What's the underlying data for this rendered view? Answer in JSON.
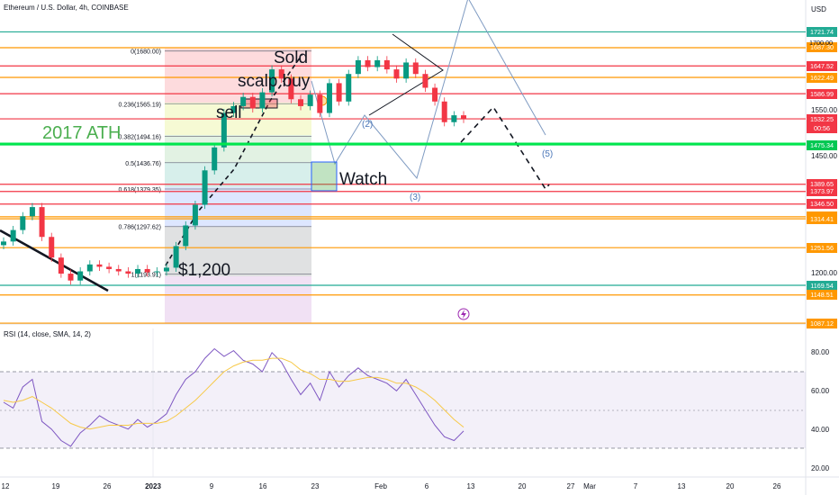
{
  "header": {
    "symbol_title": "Ethereum / U.S. Dollar, 4h, COINBASE",
    "currency": "USD",
    "rsi_title": "RSI (14, close, SMA, 14, 2)"
  },
  "chart_data": [
    {
      "type": "line",
      "title": "Ethereum / U.S. Dollar, 4h, COINBASE",
      "ylabel": "USD",
      "ylim": [
        1080,
        1760
      ],
      "x_ticks": [
        "12",
        "19",
        "26",
        "2023",
        "9",
        "16",
        "23",
        "Feb",
        "6",
        "13",
        "20",
        "27",
        "Mar",
        "7",
        "13",
        "20",
        "26"
      ],
      "y_ticks": [
        1200,
        1450,
        1550,
        1700
      ],
      "price_labels": [
        {
          "value": "1721.74",
          "color": "#22ab94"
        },
        {
          "value": "1687.30",
          "color": "#ff9800"
        },
        {
          "value": "1647.52",
          "color": "#f23645"
        },
        {
          "value": "1622.49",
          "color": "#ff9800"
        },
        {
          "value": "1586.99",
          "color": "#f23645"
        },
        {
          "value": "1532.25",
          "color": "#f23645"
        },
        {
          "value": "1475.34",
          "color": "#00c853"
        },
        {
          "value": "1389.65",
          "color": "#f23645"
        },
        {
          "value": "1373.97",
          "color": "#f23645"
        },
        {
          "value": "1346.50",
          "color": "#f23645"
        },
        {
          "value": "1318.82",
          "color": "#ff9800"
        },
        {
          "value": "1314.41",
          "color": "#ff9800"
        },
        {
          "value": "1251.56",
          "color": "#ff9800"
        },
        {
          "value": "1169.54",
          "color": "#22ab94"
        },
        {
          "value": "1148.51",
          "color": "#ff9800"
        },
        {
          "value": "1087.12",
          "color": "#ff9800"
        }
      ],
      "countdown": "00:56",
      "fib_levels": [
        {
          "label": "0(1680.00)",
          "price": 1680.0
        },
        {
          "label": "0.236(1565.19)",
          "price": 1565.19
        },
        {
          "label": "0.382(1494.16)",
          "price": 1494.16
        },
        {
          "label": "0.5(1436.76)",
          "price": 1436.76
        },
        {
          "label": "0.618(1379.35)",
          "price": 1379.35
        },
        {
          "label": "0.786(1297.62)",
          "price": 1297.62
        },
        {
          "label": "1(1193.91)",
          "price": 1193.91
        }
      ],
      "annotations": [
        "2017 ATH",
        "Sold",
        "scalp buy",
        "sell",
        "$1,200",
        "Watch",
        "(2)",
        "(3)",
        "(5)"
      ],
      "series": [
        {
          "values_approx_4h_closes": [
            1265,
            1290,
            1320,
            1340,
            1275,
            1230,
            1195,
            1180,
            1200,
            1215,
            1210,
            1205,
            1200,
            1195,
            1205,
            1198,
            1200,
            1208,
            1255,
            1300,
            1345,
            1420,
            1470,
            1545,
            1560,
            1580,
            1555,
            1590,
            1640,
            1620,
            1575,
            1560,
            1585,
            1545,
            1610,
            1570,
            1630,
            1660,
            1645,
            1660,
            1640,
            1620,
            1655,
            1630,
            1600,
            1570,
            1525,
            1540,
            1532
          ]
        }
      ]
    },
    {
      "type": "line",
      "title": "RSI (14, close, SMA, 14, 2)",
      "ylim": [
        20,
        95
      ],
      "y_ticks": [
        "80.00",
        "60.00",
        "40.00",
        "20.00"
      ],
      "bands": [
        30,
        50,
        70
      ],
      "series": [
        {
          "name": "RSI",
          "color": "#7e57c2",
          "values": [
            54,
            51,
            62,
            66,
            44,
            40,
            34,
            31,
            38,
            42,
            47,
            44,
            42,
            40,
            45,
            41,
            44,
            48,
            58,
            66,
            70,
            77,
            82,
            78,
            81,
            76,
            74,
            70,
            80,
            75,
            66,
            58,
            64,
            55,
            70,
            62,
            68,
            72,
            68,
            66,
            64,
            60,
            66,
            58,
            50,
            42,
            36,
            34,
            39
          ]
        },
        {
          "name": "SMA",
          "color": "#f7c948",
          "values": [
            55,
            54,
            55,
            57,
            54,
            51,
            47,
            43,
            41,
            40,
            41,
            42,
            42,
            42,
            43,
            43,
            43,
            44,
            47,
            51,
            55,
            60,
            65,
            70,
            73,
            75,
            76,
            76,
            77,
            77,
            75,
            71,
            69,
            66,
            66,
            65,
            65,
            66,
            67,
            67,
            66,
            64,
            64,
            62,
            59,
            55,
            50,
            45,
            41
          ]
        }
      ]
    }
  ]
}
